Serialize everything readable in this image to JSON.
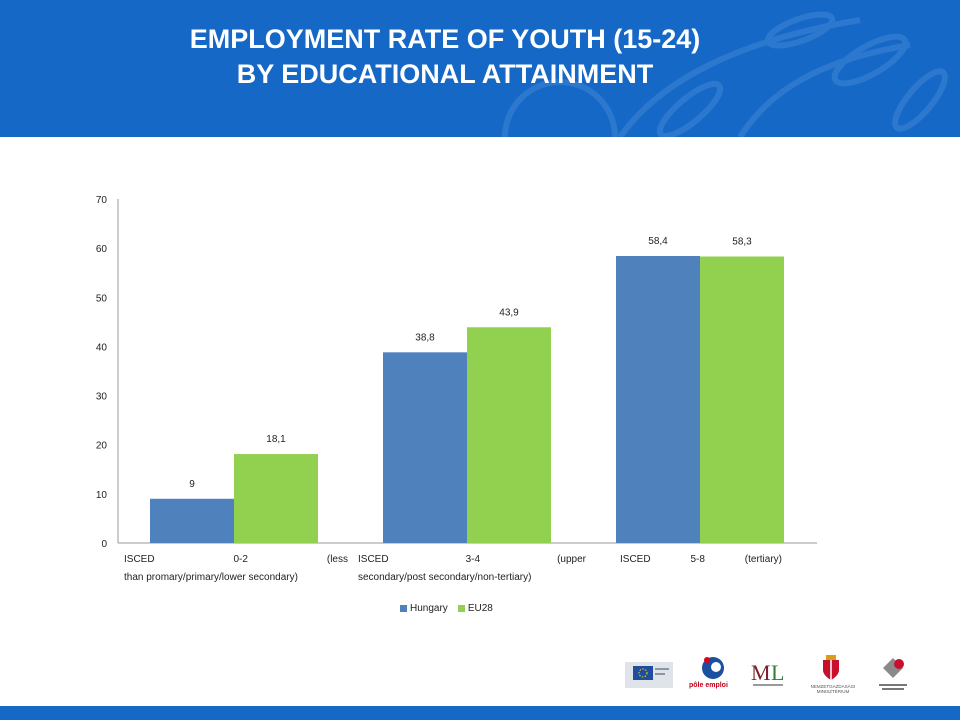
{
  "header": {
    "title_line1": "EMPLOYMENT RATE OF YOUTH (15-24)",
    "title_line2": "BY EDUCATIONAL ATTAINMENT",
    "background": "#1668c6"
  },
  "chart_data": {
    "type": "bar",
    "title": "",
    "xlabel": "",
    "ylabel": "",
    "ylim": [
      0,
      70
    ],
    "yticks": [
      "0",
      "10",
      "20",
      "30",
      "40",
      "50",
      "60",
      "70"
    ],
    "categories": [
      "ISCED 0-2 (less than promary/primary/lower secondary)",
      "ISCED 3-4 (upper secondary/post secondary/non-tertiary)",
      "ISCED 5-8 (tertiary)"
    ],
    "category_lines": [
      [
        "ISCED 0-2 (less",
        "than promary/primary/lower secondary)"
      ],
      [
        "ISCED 3-4 (upper",
        "secondary/post secondary/non-tertiary)"
      ],
      [
        "ISCED 5-8 (tertiary)"
      ]
    ],
    "series": [
      {
        "name": "Hungary",
        "values": [
          9,
          38.8,
          58.4
        ],
        "labels": [
          "9",
          "38,8",
          "58,4"
        ],
        "color": "#4f81bd"
      },
      {
        "name": "EU28",
        "values": [
          18.1,
          43.9,
          58.3
        ],
        "labels": [
          "18,1",
          "43,9",
          "58,3"
        ],
        "color": "#92d050"
      }
    ],
    "grid": false,
    "legend_position": "bottom"
  },
  "footer": {
    "logos": [
      "european-commission-logo",
      "pole-emploi-logo",
      "ml-ministry-logo",
      "nemzetgazdasagi-miniszterium-logo",
      "employment-office-logo"
    ],
    "pole_text": "pôle emploi",
    "ministry_text": "NEMZETGAZDASÁGI MINISZTÉRIUM"
  }
}
